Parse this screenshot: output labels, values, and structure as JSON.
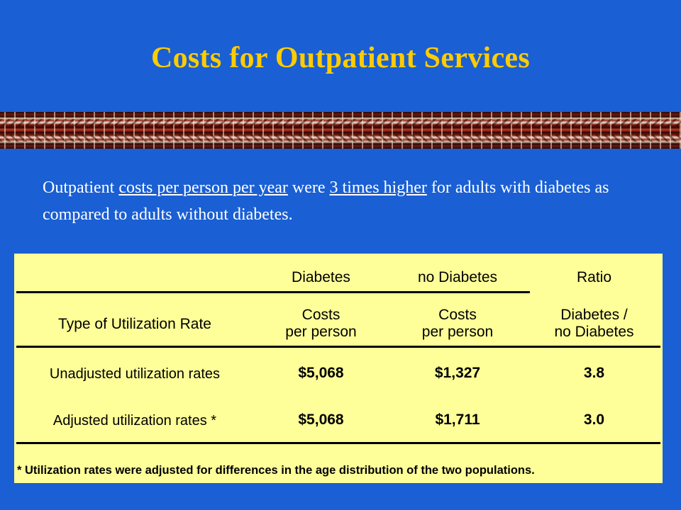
{
  "slide": {
    "title": "Costs for Outpatient Services",
    "intro": {
      "part1": "Outpatient ",
      "underline1": "costs per person per year",
      "part2": " were ",
      "underline2": "3 times higher",
      "part3": " for adults with diabetes as compared to adults without diabetes."
    }
  },
  "table": {
    "group_headers": {
      "diabetes": "Diabetes",
      "no_diabetes": "no Diabetes",
      "ratio": "Ratio"
    },
    "sub_headers": {
      "type": "Type of Utilization Rate",
      "diabetes_line1": "Costs",
      "diabetes_line2": "per person",
      "no_diabetes_line1": "Costs",
      "no_diabetes_line2": "per person",
      "ratio_line1": "Diabetes /",
      "ratio_line2": "no Diabetes"
    },
    "rows": [
      {
        "label": "Unadjusted utilization rates",
        "diabetes": "$5,068",
        "no_diabetes": "$1,327",
        "ratio": "3.8"
      },
      {
        "label": "Adjusted utilization rates *",
        "diabetes": "$5,068",
        "no_diabetes": "$1,711",
        "ratio": "3.0"
      }
    ],
    "footnote": "* Utilization rates were adjusted for differences in the age distribution of the two populations."
  },
  "colors": {
    "background": "#1a5fd3",
    "title": "#ffcc00",
    "table_fill": "#ffff99"
  }
}
